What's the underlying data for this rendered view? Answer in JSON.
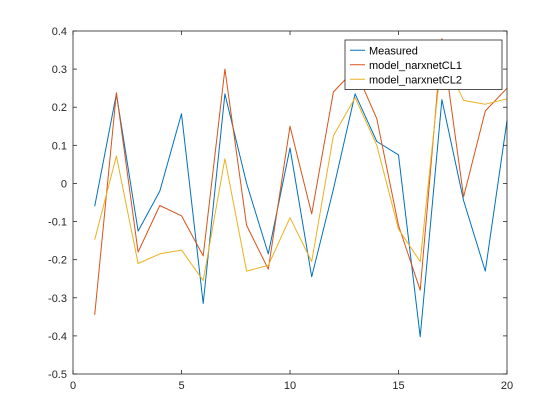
{
  "chart_data": {
    "type": "line",
    "x": [
      1,
      2,
      3,
      4,
      5,
      6,
      7,
      8,
      9,
      10,
      11,
      12,
      13,
      14,
      15,
      16,
      17,
      18,
      19,
      20
    ],
    "xlim": [
      0,
      20
    ],
    "ylim": [
      -0.5,
      0.4
    ],
    "xticks": [
      0,
      5,
      10,
      15,
      20
    ],
    "yticks": [
      -0.5,
      -0.4,
      -0.3,
      -0.2,
      -0.1,
      0,
      0.1,
      0.2,
      0.3,
      0.4
    ],
    "xtick_labels": [
      "0",
      "5",
      "10",
      "15",
      "20"
    ],
    "ytick_labels": [
      "-0.5",
      "-0.4",
      "-0.3",
      "-0.2",
      "-0.1",
      "0",
      "0.1",
      "0.2",
      "0.3",
      "0.4"
    ],
    "grid": false,
    "legend_position": "top-right",
    "series": [
      {
        "name": "Measured",
        "color": "#0072BD",
        "values": [
          -0.06,
          0.235,
          -0.125,
          -0.02,
          0.183,
          -0.315,
          0.235,
          0.0,
          -0.185,
          0.093,
          -0.245,
          -0.015,
          0.235,
          0.11,
          0.075,
          -0.402,
          0.22,
          -0.045,
          -0.23,
          0.165
        ]
      },
      {
        "name": "model_narxnetCL1",
        "color": "#D95319",
        "values": [
          -0.345,
          0.238,
          -0.18,
          -0.058,
          -0.085,
          -0.19,
          0.3,
          -0.11,
          -0.225,
          0.15,
          -0.08,
          0.24,
          0.3,
          0.17,
          -0.11,
          -0.28,
          0.38,
          -0.035,
          0.19,
          0.25
        ]
      },
      {
        "name": "model_narxnetCL2",
        "color": "#EDB120",
        "values": [
          -0.148,
          0.072,
          -0.21,
          -0.185,
          -0.175,
          -0.255,
          0.065,
          -0.23,
          -0.215,
          -0.09,
          -0.205,
          0.125,
          0.225,
          0.1,
          -0.12,
          -0.205,
          0.34,
          0.218,
          0.208,
          0.222
        ]
      }
    ]
  }
}
